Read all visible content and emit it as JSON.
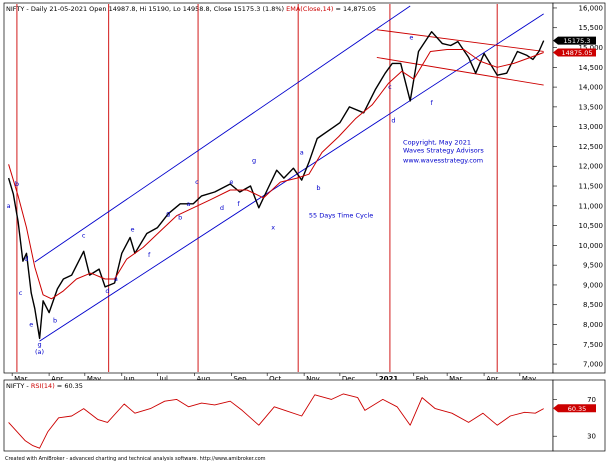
{
  "chart_data": {
    "type": "line",
    "symbol": "NIFTY",
    "title_segments": [
      {
        "text": "NIFTY - Daily 21-05-2021 Open 14987.8, Hi 15190, Lo 14958.8, Close 15175.3 (1.8%)",
        "color": "#000000"
      },
      {
        "text": " EMA(Close,14)",
        "color": "#cc0000"
      },
      {
        "text": " = 14,875.05",
        "color": "#000000"
      }
    ],
    "x_labels": [
      "Mar",
      "Apr",
      "May",
      "Jun",
      "Jul",
      "Aug",
      "Sep",
      "Oct",
      "Nov",
      "Dec",
      "2021",
      "Feb",
      "Mar",
      "Apr",
      "May"
    ],
    "y_ticks": [
      "16,000",
      "15,500",
      "15,000",
      "14,500",
      "14,000",
      "13,500",
      "13,000",
      "12,500",
      "12,000",
      "11,500",
      "11,000",
      "10,500",
      "10,000",
      "9,500",
      "9,000",
      "8,500",
      "8,000",
      "7,500",
      "7,000"
    ],
    "ylim": [
      6800,
      16100
    ],
    "price_tags": [
      "15175.3",
      "14875.05"
    ],
    "price_tag_colors": [
      "#000000",
      "#cc0000"
    ],
    "series": [
      {
        "name": "NIFTY",
        "color": "#000000",
        "points": [
          [
            "2020-02-27",
            11700
          ],
          [
            "2020-03-02",
            11300
          ],
          [
            "2020-03-06",
            10600
          ],
          [
            "2020-03-10",
            9600
          ],
          [
            "2020-03-13",
            9800
          ],
          [
            "2020-03-17",
            8800
          ],
          [
            "2020-03-20",
            8400
          ],
          [
            "2020-03-24",
            7650
          ],
          [
            "2020-03-27",
            8600
          ],
          [
            "2020-04-01",
            8300
          ],
          [
            "2020-04-08",
            8900
          ],
          [
            "2020-04-13",
            9150
          ],
          [
            "2020-04-20",
            9250
          ],
          [
            "2020-04-30",
            9850
          ],
          [
            "2020-05-05",
            9250
          ],
          [
            "2020-05-13",
            9400
          ],
          [
            "2020-05-18",
            8950
          ],
          [
            "2020-05-26",
            9050
          ],
          [
            "2020-06-01",
            9800
          ],
          [
            "2020-06-08",
            10200
          ],
          [
            "2020-06-12",
            9800
          ],
          [
            "2020-06-22",
            10300
          ],
          [
            "2020-07-01",
            10450
          ],
          [
            "2020-07-10",
            10800
          ],
          [
            "2020-07-20",
            11050
          ],
          [
            "2020-07-31",
            11050
          ],
          [
            "2020-08-07",
            11250
          ],
          [
            "2020-08-18",
            11350
          ],
          [
            "2020-08-31",
            11550
          ],
          [
            "2020-09-08",
            11350
          ],
          [
            "2020-09-17",
            11500
          ],
          [
            "2020-09-24",
            10950
          ],
          [
            "2020-10-01",
            11400
          ],
          [
            "2020-10-09",
            11900
          ],
          [
            "2020-10-15",
            11700
          ],
          [
            "2020-10-23",
            11950
          ],
          [
            "2020-10-30",
            11650
          ],
          [
            "2020-11-05",
            12100
          ],
          [
            "2020-11-12",
            12700
          ],
          [
            "2020-11-24",
            12950
          ],
          [
            "2020-12-01",
            13100
          ],
          [
            "2020-12-09",
            13500
          ],
          [
            "2020-12-21",
            13350
          ],
          [
            "2020-12-31",
            13950
          ],
          [
            "2021-01-08",
            14350
          ],
          [
            "2021-01-14",
            14600
          ],
          [
            "2021-01-21",
            14600
          ],
          [
            "2021-01-29",
            13650
          ],
          [
            "2021-02-05",
            14900
          ],
          [
            "2021-02-16",
            15400
          ],
          [
            "2021-02-25",
            15100
          ],
          [
            "2021-03-04",
            15050
          ],
          [
            "2021-03-10",
            15150
          ],
          [
            "2021-03-19",
            14750
          ],
          [
            "2021-03-25",
            14350
          ],
          [
            "2021-04-01",
            14850
          ],
          [
            "2021-04-12",
            14300
          ],
          [
            "2021-04-20",
            14350
          ],
          [
            "2021-04-29",
            14900
          ],
          [
            "2021-05-07",
            14800
          ],
          [
            "2021-05-12",
            14700
          ],
          [
            "2021-05-17",
            14900
          ],
          [
            "2021-05-21",
            15175
          ]
        ]
      },
      {
        "name": "EMA(Close,14)",
        "color": "#cc0000",
        "points": [
          [
            "2020-02-27",
            12050
          ],
          [
            "2020-03-06",
            11250
          ],
          [
            "2020-03-13",
            10450
          ],
          [
            "2020-03-20",
            9450
          ],
          [
            "2020-03-27",
            8750
          ],
          [
            "2020-04-03",
            8650
          ],
          [
            "2020-04-13",
            8850
          ],
          [
            "2020-04-24",
            9150
          ],
          [
            "2020-05-06",
            9300
          ],
          [
            "2020-05-18",
            9150
          ],
          [
            "2020-05-26",
            9150
          ],
          [
            "2020-06-05",
            9650
          ],
          [
            "2020-06-19",
            9950
          ],
          [
            "2020-07-03",
            10350
          ],
          [
            "2020-07-17",
            10750
          ],
          [
            "2020-07-31",
            10950
          ],
          [
            "2020-08-14",
            11150
          ],
          [
            "2020-08-31",
            11400
          ],
          [
            "2020-09-14",
            11400
          ],
          [
            "2020-09-28",
            11200
          ],
          [
            "2020-10-12",
            11600
          ],
          [
            "2020-10-26",
            11700
          ],
          [
            "2020-11-05",
            11800
          ],
          [
            "2020-11-16",
            12350
          ],
          [
            "2020-11-30",
            12750
          ],
          [
            "2020-12-14",
            13200
          ],
          [
            "2020-12-28",
            13550
          ],
          [
            "2021-01-11",
            14100
          ],
          [
            "2021-01-22",
            14400
          ],
          [
            "2021-02-01",
            14200
          ],
          [
            "2021-02-15",
            14900
          ],
          [
            "2021-03-01",
            14950
          ],
          [
            "2021-03-15",
            14950
          ],
          [
            "2021-03-29",
            14650
          ],
          [
            "2021-04-12",
            14500
          ],
          [
            "2021-04-26",
            14600
          ],
          [
            "2021-05-10",
            14750
          ],
          [
            "2021-05-21",
            14875
          ]
        ]
      }
    ],
    "channels": [
      {
        "color": "#0000cc",
        "from": [
          "2020-03-24",
          7580
        ],
        "to": [
          "2021-05-21",
          15850
        ]
      },
      {
        "color": "#0000cc",
        "from": [
          "2020-03-20",
          9580
        ],
        "to": [
          "2021-01-29",
          16050
        ]
      },
      {
        "color": "#cc0000",
        "from": [
          "2021-01-01",
          15450
        ],
        "to": [
          "2021-05-21",
          14900
        ]
      },
      {
        "color": "#cc0000",
        "from": [
          "2021-01-01",
          14750
        ],
        "to": [
          "2021-05-21",
          14050
        ]
      }
    ],
    "time_cycle_dates": [
      "2020-03-05",
      "2020-05-21",
      "2020-08-04",
      "2020-10-27",
      "2021-01-12",
      "2021-04-12"
    ],
    "time_cycle_color": "#cc0000",
    "wave_labels": [
      {
        "text": "a",
        "x": "2020-02-27",
        "y": 10950
      },
      {
        "text": "b",
        "x": "2020-03-05",
        "y": 11500
      },
      {
        "text": "c",
        "x": "2020-03-08",
        "y": 8750
      },
      {
        "text": "d",
        "x": "2020-03-13",
        "y": 9600
      },
      {
        "text": "e",
        "x": "2020-03-17",
        "y": 7950
      },
      {
        "text": "g",
        "x": "2020-03-24",
        "y": 7450
      },
      {
        "text": "(a)",
        "x": "2020-03-24",
        "y": 7250
      },
      {
        "text": "b",
        "x": "2020-04-06",
        "y": 8050
      },
      {
        "text": "c",
        "x": "2020-04-30",
        "y": 10200
      },
      {
        "text": "d",
        "x": "2020-05-20",
        "y": 8800
      },
      {
        "text": "a",
        "x": "2020-05-27",
        "y": 9100
      },
      {
        "text": "e",
        "x": "2020-06-10",
        "y": 10350
      },
      {
        "text": "f",
        "x": "2020-06-24",
        "y": 9700
      },
      {
        "text": "g",
        "x": "2020-07-10",
        "y": 10750
      },
      {
        "text": "b",
        "x": "2020-07-20",
        "y": 10650
      },
      {
        "text": "a",
        "x": "2020-07-27",
        "y": 11000
      },
      {
        "text": "c",
        "x": "2020-08-03",
        "y": 11550
      },
      {
        "text": "d",
        "x": "2020-08-24",
        "y": 10900
      },
      {
        "text": "e",
        "x": "2020-09-01",
        "y": 11550
      },
      {
        "text": "f",
        "x": "2020-09-07",
        "y": 11000
      },
      {
        "text": "g",
        "x": "2020-09-20",
        "y": 12100
      },
      {
        "text": "x",
        "x": "2020-10-06",
        "y": 10400
      },
      {
        "text": "a",
        "x": "2020-10-30",
        "y": 12300
      },
      {
        "text": "b",
        "x": "2020-11-13",
        "y": 11400
      },
      {
        "text": "c",
        "x": "2021-01-12",
        "y": 13950
      },
      {
        "text": "d",
        "x": "2021-01-15",
        "y": 13100
      },
      {
        "text": "e",
        "x": "2021-01-30",
        "y": 15200
      },
      {
        "text": "f",
        "x": "2021-02-16",
        "y": 13550
      }
    ],
    "annotations": [
      {
        "text": "Copyright, May 2021",
        "x": "2021-01-23",
        "y": 12550
      },
      {
        "text": "Waves Strategy Advisors",
        "x": "2021-01-23",
        "y": 12350
      },
      {
        "text": "www.wavesstrategy.com",
        "x": "2021-01-23",
        "y": 12100
      },
      {
        "text": "55 Days Time Cycle",
        "x": "2020-11-05",
        "y": 10700
      }
    ],
    "rsi": {
      "title_segments": [
        {
          "text": "NIFTY - ",
          "color": "#000000"
        },
        {
          "text": "RSI(14)",
          "color": "#cc0000"
        },
        {
          "text": " = 60.35",
          "color": "#000000"
        }
      ],
      "ylim": [
        15,
        90
      ],
      "y_ticks": [
        "70",
        "30"
      ],
      "tick_values": [
        70,
        30
      ],
      "value_tag": "60.35",
      "color": "#cc0000",
      "points": [
        [
          "2020-02-27",
          45
        ],
        [
          "2020-03-05",
          35
        ],
        [
          "2020-03-12",
          25
        ],
        [
          "2020-03-18",
          20
        ],
        [
          "2020-03-24",
          17
        ],
        [
          "2020-03-31",
          35
        ],
        [
          "2020-04-09",
          50
        ],
        [
          "2020-04-20",
          52
        ],
        [
          "2020-04-30",
          60
        ],
        [
          "2020-05-12",
          48
        ],
        [
          "2020-05-20",
          45
        ],
        [
          "2020-06-03",
          65
        ],
        [
          "2020-06-12",
          55
        ],
        [
          "2020-06-25",
          60
        ],
        [
          "2020-07-07",
          68
        ],
        [
          "2020-07-17",
          70
        ],
        [
          "2020-07-27",
          62
        ],
        [
          "2020-08-07",
          66
        ],
        [
          "2020-08-18",
          64
        ],
        [
          "2020-08-31",
          68
        ],
        [
          "2020-09-10",
          58
        ],
        [
          "2020-09-24",
          42
        ],
        [
          "2020-10-07",
          62
        ],
        [
          "2020-10-16",
          58
        ],
        [
          "2020-10-30",
          52
        ],
        [
          "2020-11-10",
          75
        ],
        [
          "2020-11-24",
          70
        ],
        [
          "2020-12-04",
          76
        ],
        [
          "2020-12-16",
          72
        ],
        [
          "2020-12-22",
          58
        ],
        [
          "2021-01-06",
          70
        ],
        [
          "2021-01-18",
          62
        ],
        [
          "2021-01-29",
          42
        ],
        [
          "2021-02-08",
          72
        ],
        [
          "2021-02-19",
          60
        ],
        [
          "2021-03-05",
          55
        ],
        [
          "2021-03-19",
          45
        ],
        [
          "2021-03-31",
          55
        ],
        [
          "2021-04-12",
          42
        ],
        [
          "2021-04-23",
          52
        ],
        [
          "2021-05-05",
          56
        ],
        [
          "2021-05-14",
          55
        ],
        [
          "2021-05-21",
          60
        ]
      ]
    },
    "footer": "Created with AmiBroker - advanced charting and technical analysis software. http://www.amibroker.com"
  }
}
